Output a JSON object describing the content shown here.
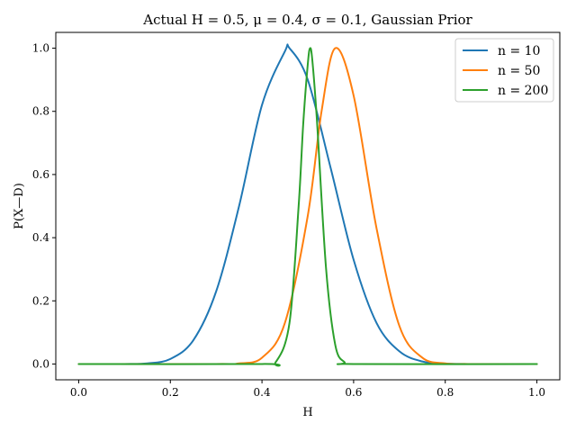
{
  "chart_data": {
    "type": "line",
    "title": "Actual H = 0.5, μ = 0.4, σ = 0.1, Gaussian Prior",
    "xlabel": "H",
    "ylabel": "P(X—D)",
    "xlim": [
      -0.05,
      1.05
    ],
    "ylim": [
      -0.05,
      1.05
    ],
    "xticks": [
      0.0,
      0.2,
      0.4,
      0.6,
      0.8,
      1.0
    ],
    "xtick_labels": [
      "0.0",
      "0.2",
      "0.4",
      "0.6",
      "0.8",
      "1.0"
    ],
    "yticks": [
      0.0,
      0.2,
      0.4,
      0.6,
      0.8,
      1.0
    ],
    "ytick_labels": [
      "0.0",
      "0.2",
      "0.4",
      "0.6",
      "0.8",
      "1.0"
    ],
    "grid": false,
    "legend_position": "top-right",
    "series": [
      {
        "name": "n = 10",
        "color": "#1f77b4",
        "points": [
          [
            0.0,
            0.0
          ],
          [
            0.1,
            0.0
          ],
          [
            0.15,
            0.002
          ],
          [
            0.2,
            0.016
          ],
          [
            0.25,
            0.075
          ],
          [
            0.3,
            0.23
          ],
          [
            0.35,
            0.5
          ],
          [
            0.4,
            0.82
          ],
          [
            0.45,
            0.99
          ],
          [
            0.46,
            1.0
          ],
          [
            0.5,
            0.9
          ],
          [
            0.55,
            0.62
          ],
          [
            0.6,
            0.33
          ],
          [
            0.65,
            0.13
          ],
          [
            0.7,
            0.04
          ],
          [
            0.75,
            0.008
          ],
          [
            0.8,
            0.001
          ],
          [
            0.9,
            0.0
          ],
          [
            1.0,
            0.0
          ]
        ]
      },
      {
        "name": "n = 50",
        "color": "#ff7f0e",
        "points": [
          [
            0.0,
            0.0
          ],
          [
            0.3,
            0.0
          ],
          [
            0.35,
            0.002
          ],
          [
            0.4,
            0.02
          ],
          [
            0.45,
            0.13
          ],
          [
            0.5,
            0.47
          ],
          [
            0.53,
            0.8
          ],
          [
            0.56,
            1.0
          ],
          [
            0.6,
            0.85
          ],
          [
            0.65,
            0.43
          ],
          [
            0.7,
            0.12
          ],
          [
            0.75,
            0.02
          ],
          [
            0.8,
            0.002
          ],
          [
            0.85,
            0.0
          ],
          [
            1.0,
            0.0
          ]
        ]
      },
      {
        "name": "n = 200",
        "color": "#2ca02c",
        "points": [
          [
            0.0,
            0.0
          ],
          [
            0.4,
            0.0
          ],
          [
            0.43,
            0.006
          ],
          [
            0.46,
            0.13
          ],
          [
            0.48,
            0.5
          ],
          [
            0.49,
            0.76
          ],
          [
            0.5,
            0.95
          ],
          [
            0.505,
            1.0
          ],
          [
            0.51,
            0.96
          ],
          [
            0.52,
            0.77
          ],
          [
            0.54,
            0.3
          ],
          [
            0.56,
            0.06
          ],
          [
            0.58,
            0.006
          ],
          [
            0.6,
            0.0
          ],
          [
            1.0,
            0.0
          ]
        ]
      }
    ]
  }
}
